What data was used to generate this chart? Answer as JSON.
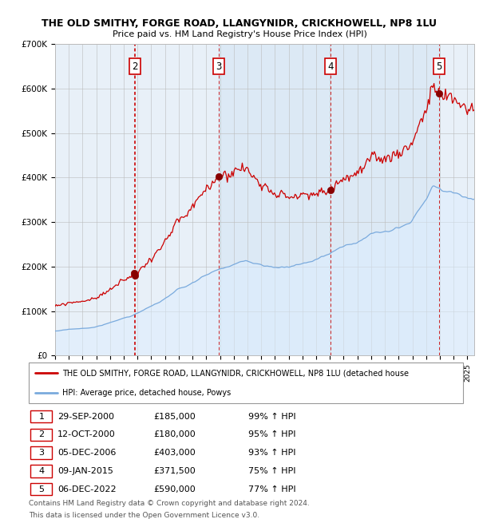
{
  "title_line1": "THE OLD SMITHY, FORGE ROAD, LLANGYNIDR, CRICKHOWELL, NP8 1LU",
  "title_line2": "Price paid vs. HM Land Registry's House Price Index (HPI)",
  "hpi_color": "#7aaadd",
  "hpi_fill_color": "#ddeeff",
  "price_color": "#cc0000",
  "sale_marker_color": "#880000",
  "vline_color": "#cc0000",
  "background_color": "#e8f0f8",
  "grid_color": "#bbbbbb",
  "ylim": [
    0,
    700000
  ],
  "yticks": [
    0,
    100000,
    200000,
    300000,
    400000,
    500000,
    600000,
    700000
  ],
  "ytick_labels": [
    "£0",
    "£100K",
    "£200K",
    "£300K",
    "£400K",
    "£500K",
    "£600K",
    "£700K"
  ],
  "xlim_start": 1995.0,
  "xlim_end": 2025.5,
  "sales": [
    {
      "label": "1",
      "date_str": "29-SEP-2000",
      "date_num": 2000.75,
      "price": 185000,
      "pct": "99%",
      "dir": "↑",
      "show_box": false
    },
    {
      "label": "2",
      "date_str": "12-OCT-2000",
      "date_num": 2000.79,
      "price": 180000,
      "pct": "95%",
      "dir": "↑",
      "show_box": true
    },
    {
      "label": "3",
      "date_str": "05-DEC-2006",
      "date_num": 2006.92,
      "price": 403000,
      "pct": "93%",
      "dir": "↑",
      "show_box": true
    },
    {
      "label": "4",
      "date_str": "09-JAN-2015",
      "date_num": 2015.03,
      "price": 371500,
      "pct": "75%",
      "dir": "↑",
      "show_box": true
    },
    {
      "label": "5",
      "date_str": "06-DEC-2022",
      "date_num": 2022.92,
      "price": 590000,
      "pct": "77%",
      "dir": "↑",
      "show_box": true
    }
  ],
  "legend_property_label": "THE OLD SMITHY, FORGE ROAD, LLANGYNIDR, CRICKHOWELL, NP8 1LU (detached house",
  "legend_hpi_label": "HPI: Average price, detached house, Powys",
  "footer_line1": "Contains HM Land Registry data © Crown copyright and database right 2024.",
  "footer_line2": "This data is licensed under the Open Government Licence v3.0.",
  "table_rows": [
    [
      "1",
      "29-SEP-2000",
      "£185,000",
      "99% ↑ HPI"
    ],
    [
      "2",
      "12-OCT-2000",
      "£180,000",
      "95% ↑ HPI"
    ],
    [
      "3",
      "05-DEC-2006",
      "£403,000",
      "93% ↑ HPI"
    ],
    [
      "4",
      "09-JAN-2015",
      "£371,500",
      "75% ↑ HPI"
    ],
    [
      "5",
      "06-DEC-2022",
      "£590,000",
      "77% ↑ HPI"
    ]
  ]
}
